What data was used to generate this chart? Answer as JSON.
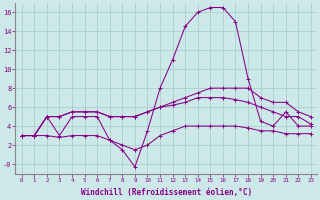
{
  "x": [
    0,
    1,
    2,
    3,
    4,
    5,
    6,
    7,
    8,
    9,
    10,
    11,
    12,
    13,
    14,
    15,
    16,
    17,
    18,
    19,
    20,
    21,
    22,
    23
  ],
  "line1": [
    3,
    3,
    5,
    3,
    5,
    5,
    5,
    2.5,
    1.5,
    -0.3,
    3.5,
    8,
    11,
    14.5,
    16,
    16.5,
    16.5,
    15,
    9,
    4.5,
    4,
    5.5,
    4,
    4
  ],
  "line2": [
    3,
    3,
    5,
    5,
    5.5,
    5.5,
    5.5,
    5,
    5,
    5,
    5.5,
    6,
    6.5,
    7,
    7.5,
    8,
    8,
    8,
    8,
    7,
    6.5,
    6.5,
    5.5,
    5
  ],
  "line3": [
    3,
    3,
    3,
    2.8,
    3,
    3,
    3,
    2.5,
    2,
    1.5,
    2,
    3,
    3.5,
    4,
    4,
    4,
    4,
    4,
    3.8,
    3.5,
    3.5,
    3.2,
    3.2,
    3.2
  ],
  "line4": [
    3,
    3,
    5,
    5,
    5.5,
    5.5,
    5.5,
    5,
    5,
    5,
    5.5,
    6,
    6.2,
    6.5,
    7,
    7,
    7,
    6.8,
    6.5,
    6,
    5.5,
    5,
    5,
    4.2
  ],
  "background_color": "#cce8e8",
  "grid_color": "#aacece",
  "line_color": "#880088",
  "xlabel": "Windchill (Refroidissement éolien,°C)",
  "ylim": [
    -1,
    17
  ],
  "xlim": [
    -0.5,
    23.5
  ],
  "yticks": [
    0,
    2,
    4,
    6,
    8,
    10,
    12,
    14,
    16
  ],
  "ytick_labels": [
    "-0",
    "2",
    "4",
    "6",
    "8",
    "10",
    "12",
    "14",
    "16"
  ],
  "xticks": [
    0,
    1,
    2,
    3,
    4,
    5,
    6,
    7,
    8,
    9,
    10,
    11,
    12,
    13,
    14,
    15,
    16,
    17,
    18,
    19,
    20,
    21,
    22,
    23
  ],
  "marker": "+"
}
